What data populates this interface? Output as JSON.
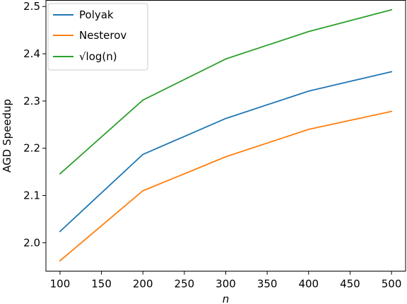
{
  "chart_data": {
    "type": "line",
    "xlabel": "n",
    "ylabel": "AGD Speedup",
    "x": [
      100,
      200,
      300,
      400,
      500
    ],
    "xlim": [
      83,
      517
    ],
    "ylim": [
      1.94,
      2.513
    ],
    "xticks": [
      100,
      150,
      200,
      250,
      300,
      350,
      400,
      450,
      500
    ],
    "yticks": [
      2.0,
      2.1,
      2.2,
      2.3,
      2.4,
      2.5
    ],
    "grid": false,
    "legend_position": "top-left",
    "series": [
      {
        "name": "Polyak",
        "color": "#1f77b4",
        "values": [
          2.024,
          2.187,
          2.263,
          2.321,
          2.362
        ]
      },
      {
        "name": "Nesterov",
        "color": "#ff7f0e",
        "values": [
          1.962,
          2.11,
          2.182,
          2.24,
          2.278
        ]
      },
      {
        "name": "√log(n)",
        "color": "#2ca02c",
        "values": [
          2.146,
          2.302,
          2.389,
          2.447,
          2.493
        ]
      }
    ]
  }
}
